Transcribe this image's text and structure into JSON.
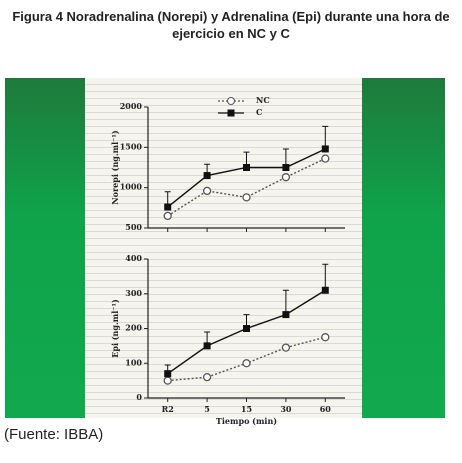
{
  "title": "Figura 4  Noradrenalina (Norepi) y Adrenalina (Epi) durante una hora de ejercicio en NC y C",
  "source": "(Fuente: IBBA)",
  "chart_data": [
    {
      "type": "line",
      "y_label": "Norepi (ng.ml⁻¹)",
      "ylim": [
        500,
        2000
      ],
      "yticks": [
        500,
        1000,
        1500,
        2000
      ],
      "legend": "top",
      "series": [
        {
          "name": "NC",
          "color": "#555555",
          "marker": "circle-open",
          "dashed": true,
          "values": [
            650,
            960,
            880,
            1130,
            1360
          ]
        },
        {
          "name": "C",
          "color": "#111111",
          "marker": "square-filled",
          "dashed": false,
          "values": [
            760,
            1150,
            1250,
            1250,
            1480
          ],
          "errors": [
            190,
            140,
            190,
            230,
            280
          ]
        }
      ]
    },
    {
      "type": "line",
      "y_label": "Epi (ng.ml⁻¹)",
      "x_label": "Tiempo (min)",
      "categories": [
        "R2",
        "5",
        "15",
        "30",
        "60"
      ],
      "ylim": [
        0,
        400
      ],
      "yticks": [
        0,
        100,
        200,
        300,
        400
      ],
      "series": [
        {
          "color": "#555555",
          "marker": "circle-open",
          "dashed": true,
          "values": [
            50,
            60,
            100,
            145,
            175
          ]
        },
        {
          "color": "#111111",
          "marker": "square-filled",
          "dashed": false,
          "values": [
            70,
            150,
            200,
            240,
            310
          ],
          "errors": [
            25,
            40,
            40,
            70,
            75
          ]
        }
      ]
    }
  ]
}
